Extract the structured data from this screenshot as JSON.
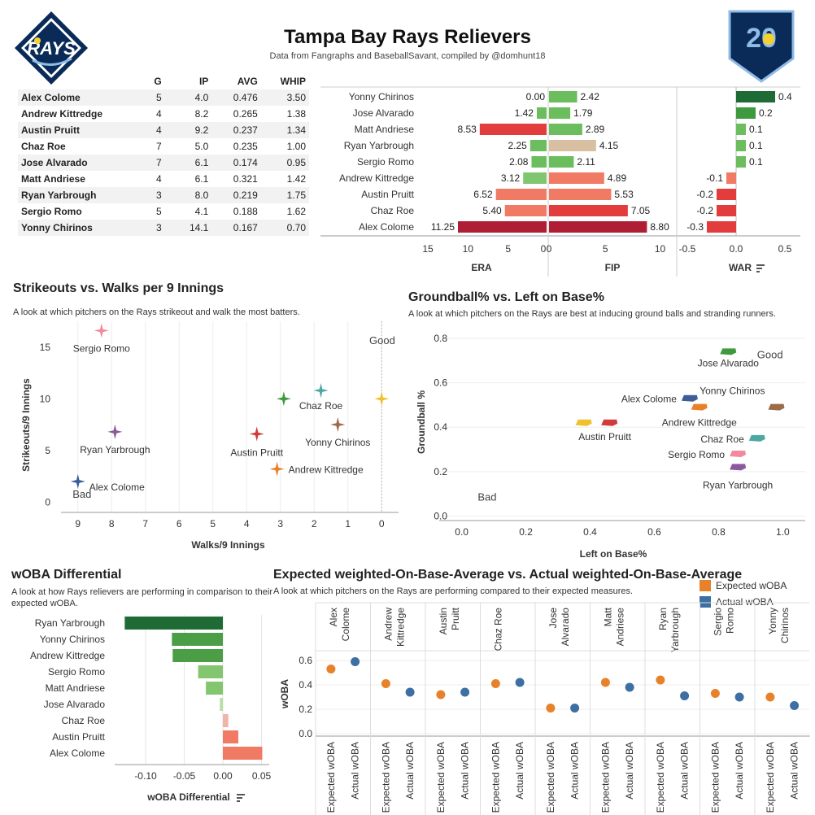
{
  "header": {
    "title": "Tampa Bay Rays Relievers",
    "subtitle": "Data from Fangraphs and BaseballSavant, compiled by @domhunt18",
    "logo_left_text": "RAYS",
    "logo_right_text": "20"
  },
  "stats_table": {
    "columns": [
      "G",
      "IP",
      "AVG",
      "WHIP"
    ],
    "rows": [
      {
        "name": "Alex Colome",
        "G": "5",
        "IP": "4.0",
        "AVG": "0.476",
        "WHIP": "3.50"
      },
      {
        "name": "Andrew Kittredge",
        "G": "4",
        "IP": "8.2",
        "AVG": "0.265",
        "WHIP": "1.38"
      },
      {
        "name": "Austin Pruitt",
        "G": "4",
        "IP": "9.2",
        "AVG": "0.237",
        "WHIP": "1.34"
      },
      {
        "name": "Chaz Roe",
        "G": "7",
        "IP": "5.0",
        "AVG": "0.235",
        "WHIP": "1.00"
      },
      {
        "name": "Jose Alvarado",
        "G": "7",
        "IP": "6.1",
        "AVG": "0.174",
        "WHIP": "0.95"
      },
      {
        "name": "Matt Andriese",
        "G": "4",
        "IP": "6.1",
        "AVG": "0.321",
        "WHIP": "1.42"
      },
      {
        "name": "Ryan Yarbrough",
        "G": "3",
        "IP": "8.0",
        "AVG": "0.219",
        "WHIP": "1.75"
      },
      {
        "name": "Sergio Romo",
        "G": "5",
        "IP": "4.1",
        "AVG": "0.188",
        "WHIP": "1.62"
      },
      {
        "name": "Yonny Chirinos",
        "G": "3",
        "IP": "14.1",
        "AVG": "0.167",
        "WHIP": "0.70"
      }
    ]
  },
  "chart_data": [
    {
      "id": "era_fip_war",
      "type": "bar",
      "categories": [
        "Yonny Chirinos",
        "Jose Alvarado",
        "Matt Andriese",
        "Ryan Yarbrough",
        "Sergio Romo",
        "Andrew Kittredge",
        "Austin Pruitt",
        "Chaz Roe",
        "Alex Colome"
      ],
      "series": [
        {
          "name": "ERA",
          "values": [
            0.0,
            1.42,
            8.53,
            2.25,
            2.08,
            3.12,
            6.52,
            5.4,
            11.25
          ],
          "labels": [
            "0.00",
            "1.42",
            "8.53",
            "2.25",
            "2.08",
            "3.12",
            "6.52",
            "5.40",
            "11.25"
          ]
        },
        {
          "name": "FIP",
          "values": [
            2.42,
            1.79,
            2.89,
            4.15,
            2.11,
            4.89,
            5.53,
            7.05,
            8.8
          ],
          "labels": [
            "2.42",
            "1.79",
            "2.89",
            "4.15",
            "2.11",
            "4.89",
            "5.53",
            "7.05",
            "8.80"
          ]
        },
        {
          "name": "WAR",
          "values": [
            0.4,
            0.2,
            0.1,
            0.1,
            0.1,
            -0.1,
            -0.2,
            -0.2,
            -0.3
          ],
          "labels": [
            "0.4",
            "0.2",
            "0.1",
            "0.1",
            "0.1",
            "-0.1",
            "-0.2",
            "-0.2",
            "-0.3"
          ]
        }
      ],
      "era_ticks": [
        "15",
        "10",
        "5",
        "0"
      ],
      "fip_ticks": [
        "0",
        "5",
        "10"
      ],
      "war_ticks": [
        "-0.5",
        "0.0",
        "0.5"
      ],
      "era_range": [
        15,
        0
      ],
      "fip_range": [
        0,
        11
      ],
      "war_range": [
        -0.5,
        0.5
      ],
      "axis_titles": [
        "ERA",
        "FIP",
        "WAR"
      ]
    },
    {
      "id": "k_bb",
      "type": "scatter",
      "title": "Strikeouts vs. Walks per 9 Innings",
      "subtitle": "A look at which pitchers on the Rays strikeout and walk the most batters.",
      "xlabel": "Walks/9 Innings",
      "ylabel": "Strikeouts/9 Innings",
      "xlim": [
        9.5,
        -0.5
      ],
      "ylim": [
        -1,
        17.5
      ],
      "x_ticks": [
        "9",
        "8",
        "7",
        "6",
        "5",
        "4",
        "3",
        "2",
        "1",
        "0"
      ],
      "y_ticks": [
        "0",
        "5",
        "10",
        "15"
      ],
      "annotations": [
        {
          "text": "Good",
          "x": -0.4,
          "y": 15.3
        },
        {
          "text": "Bad",
          "x": 8.6,
          "y": 0.4
        }
      ],
      "points": [
        {
          "name": "Sergio Romo",
          "x": 8.3,
          "y": 16.6,
          "color": "#f08a9c",
          "label": "Sergio Romo"
        },
        {
          "name": "Ryan Yarbrough",
          "x": 7.9,
          "y": 6.8,
          "color": "#8b5a9e",
          "label": "Ryan Yarbrough"
        },
        {
          "name": "Alex Colome",
          "x": 9.0,
          "y": 2.0,
          "color": "#3b5d98",
          "label": "Alex Colome"
        },
        {
          "name": "Austin Pruitt",
          "x": 3.7,
          "y": 6.6,
          "color": "#d23b3b",
          "label": "Austin Pruitt"
        },
        {
          "name": "Jose Alvarado",
          "x": 2.9,
          "y": 10.0,
          "color": "#3e9a3e",
          "label": ""
        },
        {
          "name": "Chaz Roe",
          "x": 1.8,
          "y": 10.8,
          "color": "#4fa7a2",
          "label": "Chaz Roe"
        },
        {
          "name": "Yonny Chirinos",
          "x": 1.3,
          "y": 7.5,
          "color": "#9b6b4a",
          "label": "Yonny Chirinos"
        },
        {
          "name": "Andrew Kittredge",
          "x": 3.1,
          "y": 3.2,
          "color": "#e8822a",
          "label": "Andrew Kittredge"
        },
        {
          "name": "Matt Andriese",
          "x": 0.0,
          "y": 10.0,
          "color": "#f0c12e",
          "label": ""
        }
      ]
    },
    {
      "id": "gb_lob",
      "type": "scatter",
      "title": "Groundball% vs. Left on Base%",
      "subtitle": "A look at which pitchers on the Rays are best at inducing ground balls and stranding runners.",
      "xlabel": "Left on Base%",
      "ylabel": "Groundball %",
      "xlim": [
        -0.07,
        1.07
      ],
      "ylim": [
        -0.02,
        0.84
      ],
      "x_ticks": [
        "0.0",
        "0.2",
        "0.4",
        "0.6",
        "0.8",
        "1.0"
      ],
      "y_ticks": [
        "0.0",
        "0.2",
        "0.4",
        "0.6",
        "0.8"
      ],
      "annotations": [
        {
          "text": "Good",
          "x": 0.92,
          "y": 0.71
        },
        {
          "text": "Bad",
          "x": 0.05,
          "y": 0.07
        }
      ],
      "points": [
        {
          "name": "Jose Alvarado",
          "x": 0.83,
          "y": 0.74,
          "color": "#3e9a3e",
          "label": "Jose Alvarado"
        },
        {
          "name": "Alex Colome",
          "x": 0.71,
          "y": 0.53,
          "color": "#3b5d98",
          "label": "Alex Colome"
        },
        {
          "name": "Andrew Kittredge",
          "x": 0.74,
          "y": 0.49,
          "color": "#e8822a",
          "label": "Andrew Kittredge"
        },
        {
          "name": "Yonny Chirinos",
          "x": 0.98,
          "y": 0.49,
          "color": "#9b6b4a",
          "label": "Yonny Chirinos"
        },
        {
          "name": "Austin Pruitt",
          "x": 0.38,
          "y": 0.42,
          "color": "#f0c12e",
          "label": "Austin Pruitt"
        },
        {
          "name": "Matt Andriese",
          "x": 0.46,
          "y": 0.42,
          "color": "#d23b3b",
          "label": ""
        },
        {
          "name": "Chaz Roe",
          "x": 0.92,
          "y": 0.35,
          "color": "#4fa7a2",
          "label": "Chaz Roe"
        },
        {
          "name": "Sergio Romo",
          "x": 0.86,
          "y": 0.28,
          "color": "#f08a9c",
          "label": "Sergio Romo"
        },
        {
          "name": "Ryan Yarbrough",
          "x": 0.86,
          "y": 0.22,
          "color": "#8b5a9e",
          "label": "Ryan Yarbrough"
        }
      ]
    },
    {
      "id": "woba_diff",
      "type": "bar",
      "title": "wOBA Differential",
      "subtitle": "A look at how Rays relievers are performing in comparison to their expected wOBA.",
      "xlabel": "wOBA Differential",
      "xlim": [
        -0.14,
        0.06
      ],
      "x_ticks": [
        "-0.10",
        "-0.05",
        "0.00",
        "0.05"
      ],
      "x_tick_values": [
        -0.1,
        -0.05,
        0.0,
        0.05
      ],
      "categories": [
        "Ryan Yarbrough",
        "Yonny Chirinos",
        "Andrew Kittredge",
        "Sergio Romo",
        "Matt Andriese",
        "Jose Alvarado",
        "Chaz Roe",
        "Austin Pruitt",
        "Alex Colome"
      ],
      "values": [
        -0.127,
        -0.066,
        -0.065,
        -0.032,
        -0.022,
        -0.004,
        0.007,
        0.02,
        0.051
      ],
      "colors": [
        "#1f6b35",
        "#4c9e46",
        "#4c9e46",
        "#84c66f",
        "#84c66f",
        "#b9dfa7",
        "#f0b4a8",
        "#f07a64",
        "#f07a64"
      ]
    },
    {
      "id": "xwoba_woba",
      "type": "scatter",
      "title": "Expected weighted-On-Base-Average vs. Actual weighted-On-Base-Average",
      "subtitle": "A look at which pitchers on the Rays are performing compared to their expected measures.",
      "ylabel": "wOBA",
      "ylim": [
        -0.02,
        0.68
      ],
      "y_ticks": [
        "0.0",
        "0.2",
        "0.4",
        "0.6"
      ],
      "y_tick_values": [
        0.0,
        0.2,
        0.4,
        0.6
      ],
      "legend": [
        {
          "name": "Expected wOBA",
          "color": "#e8822a"
        },
        {
          "name": "Actual wOBA",
          "color": "#3d6fa3"
        }
      ],
      "sub_categories": [
        "Expected wOBA",
        "Actual wOBA"
      ],
      "players": [
        {
          "label_lines": [
            "Alex",
            "Colome"
          ],
          "expected": 0.53,
          "actual": 0.59
        },
        {
          "label_lines": [
            "Andrew",
            "Kittredge"
          ],
          "expected": 0.41,
          "actual": 0.34
        },
        {
          "label_lines": [
            "Austin",
            "Pruitt"
          ],
          "expected": 0.32,
          "actual": 0.34
        },
        {
          "label_lines": [
            "Chaz Roe"
          ],
          "expected": 0.41,
          "actual": 0.42
        },
        {
          "label_lines": [
            "Jose",
            "Alvarado"
          ],
          "expected": 0.21,
          "actual": 0.21
        },
        {
          "label_lines": [
            "Matt",
            "Andriese"
          ],
          "expected": 0.42,
          "actual": 0.38
        },
        {
          "label_lines": [
            "Ryan",
            "Yarbrough"
          ],
          "expected": 0.44,
          "actual": 0.31
        },
        {
          "label_lines": [
            "Sergio",
            "Romo"
          ],
          "expected": 0.33,
          "actual": 0.3
        },
        {
          "label_lines": [
            "Yonny",
            "Chirinos"
          ],
          "expected": 0.3,
          "actual": 0.23
        }
      ]
    }
  ]
}
